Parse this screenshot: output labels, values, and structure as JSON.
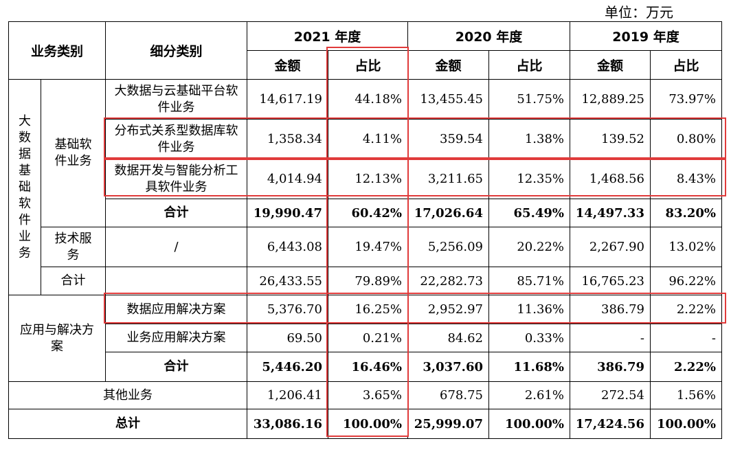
{
  "unit_label": "单位：万元",
  "header": {
    "business_category": "业务类别",
    "sub_category": "细分类别",
    "years": [
      "2021 年度",
      "2020 年度",
      "2019 年度"
    ],
    "amount": "金额",
    "share": "占比"
  },
  "big_data_group": "大数据基础软件业务",
  "basic_software_label": "基础软件业务",
  "tech_service_label": "技术服务",
  "app_group_label": "应用与解决方案",
  "rows": {
    "cloud": {
      "name": "大数据与云基础平台软件业务",
      "v": [
        "14,617.19",
        "44.18%",
        "13,455.45",
        "51.75%",
        "12,889.25",
        "73.97%"
      ]
    },
    "distributed": {
      "name": "分布式关系型数据库软件业务",
      "v": [
        "1,358.34",
        "4.11%",
        "359.54",
        "1.38%",
        "139.52",
        "0.80%"
      ]
    },
    "devtools": {
      "name": "数据开发与智能分析工具软件业务",
      "v": [
        "4,014.94",
        "12.13%",
        "3,211.65",
        "12.35%",
        "1,468.56",
        "8.43%"
      ]
    },
    "basic_total": {
      "name": "合计",
      "v": [
        "19,990.47",
        "60.42%",
        "17,026.64",
        "65.49%",
        "14,497.33",
        "83.20%"
      ]
    },
    "tech": {
      "name": "/",
      "v": [
        "6,443.08",
        "19.47%",
        "5,256.09",
        "20.22%",
        "2,267.90",
        "13.02%"
      ]
    },
    "bigdata_total": {
      "name": "合计",
      "v": [
        "26,433.55",
        "79.89%",
        "22,282.73",
        "85.71%",
        "16,765.23",
        "96.22%"
      ]
    },
    "data_app": {
      "name": "数据应用解决方案",
      "v": [
        "5,376.70",
        "16.25%",
        "2,952.97",
        "11.36%",
        "386.79",
        "2.22%"
      ]
    },
    "biz_app": {
      "name": "业务应用解决方案",
      "v": [
        "69.50",
        "0.21%",
        "84.62",
        "0.33%",
        "-",
        "-"
      ]
    },
    "app_total": {
      "name": "合计",
      "v": [
        "5,446.20",
        "16.46%",
        "3,037.60",
        "11.68%",
        "386.79",
        "2.22%"
      ]
    },
    "other": {
      "name": "其他业务",
      "v": [
        "1,206.41",
        "3.65%",
        "678.75",
        "2.61%",
        "272.54",
        "1.56%"
      ]
    },
    "grand_total": {
      "name": "总计",
      "v": [
        "33,086.16",
        "100.00%",
        "25,999.07",
        "100.00%",
        "17,424.56",
        "100.00%"
      ]
    }
  },
  "highlight_color": "#e03a3a"
}
